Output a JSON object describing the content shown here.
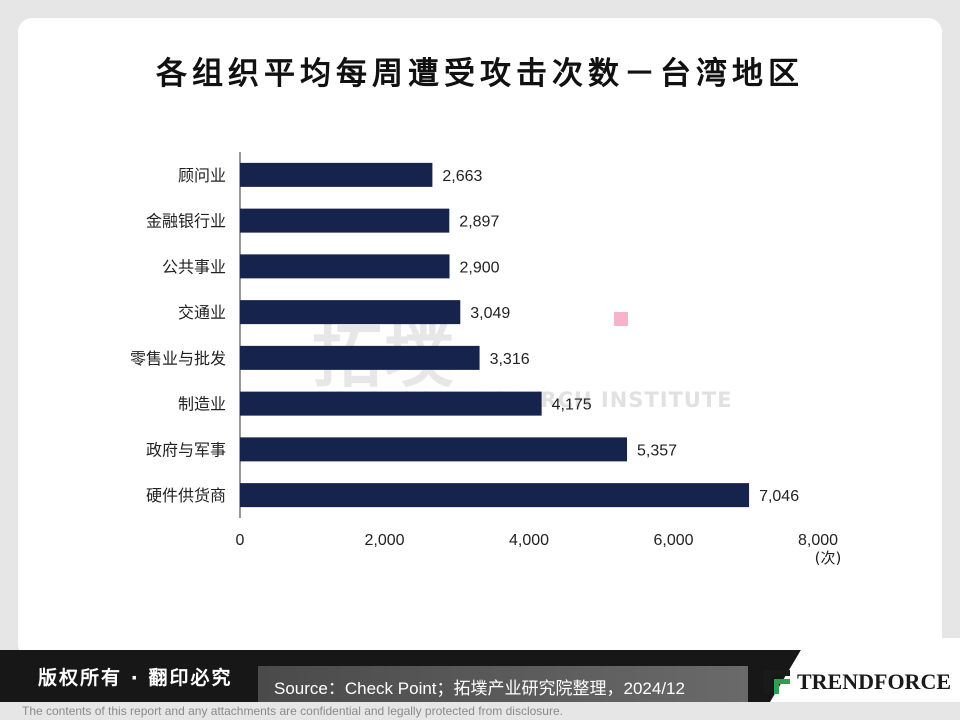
{
  "title": "各组织平均每周遭受攻击次数－台湾地区",
  "watermark": {
    "cn": "拓墣",
    "en": "TOPOLOGY RESEARCH INSTITUTE"
  },
  "footer": {
    "copyright": "版权所有 · 翻印必究",
    "source": "Source：Check Point；拓墣产业研究院整理，2024/12",
    "logo_text": "TRENDFORCE",
    "disclaimer": "The contents of this report and any attachments are confidential and legally protected from disclosure."
  },
  "colors": {
    "bar": "#16244d",
    "axis": "#333333"
  },
  "chart_data": {
    "type": "bar",
    "orientation": "horizontal",
    "categories": [
      "顾问业",
      "金融银行业",
      "公共事业",
      "交通业",
      "零售业与批发",
      "制造业",
      "政府与军事",
      "硬件供货商"
    ],
    "values": [
      2663,
      2897,
      2900,
      3049,
      3316,
      4175,
      5357,
      7046
    ],
    "value_labels": [
      "2,663",
      "2,897",
      "2,900",
      "3,049",
      "3,316",
      "4,175",
      "5,357",
      "7,046"
    ],
    "title": "各组织平均每周遭受攻击次数－台湾地区",
    "xlabel": "(次)",
    "xlim": [
      0,
      8000
    ],
    "xticks": [
      0,
      2000,
      4000,
      6000,
      8000
    ],
    "xtick_labels": [
      "0",
      "2,000",
      "4,000",
      "6,000",
      "8,000"
    ],
    "grid": false,
    "legend": "none"
  }
}
